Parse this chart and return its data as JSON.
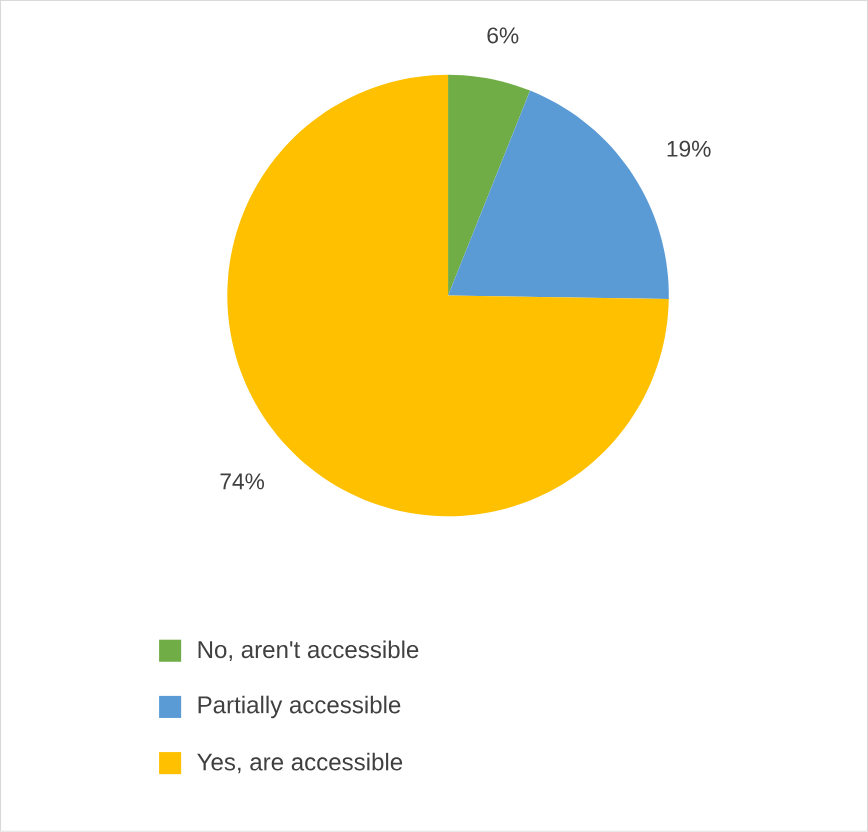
{
  "chart_data": {
    "type": "pie",
    "categories": [
      "No, aren't accessible",
      "Partially accessible",
      "Yes, are accessible"
    ],
    "values": [
      6,
      19,
      74
    ],
    "colors": [
      "#70ad47",
      "#5b9bd5",
      "#ffc000"
    ],
    "value_labels": [
      "6%",
      "19%",
      "74%"
    ],
    "legend": "bottom"
  }
}
